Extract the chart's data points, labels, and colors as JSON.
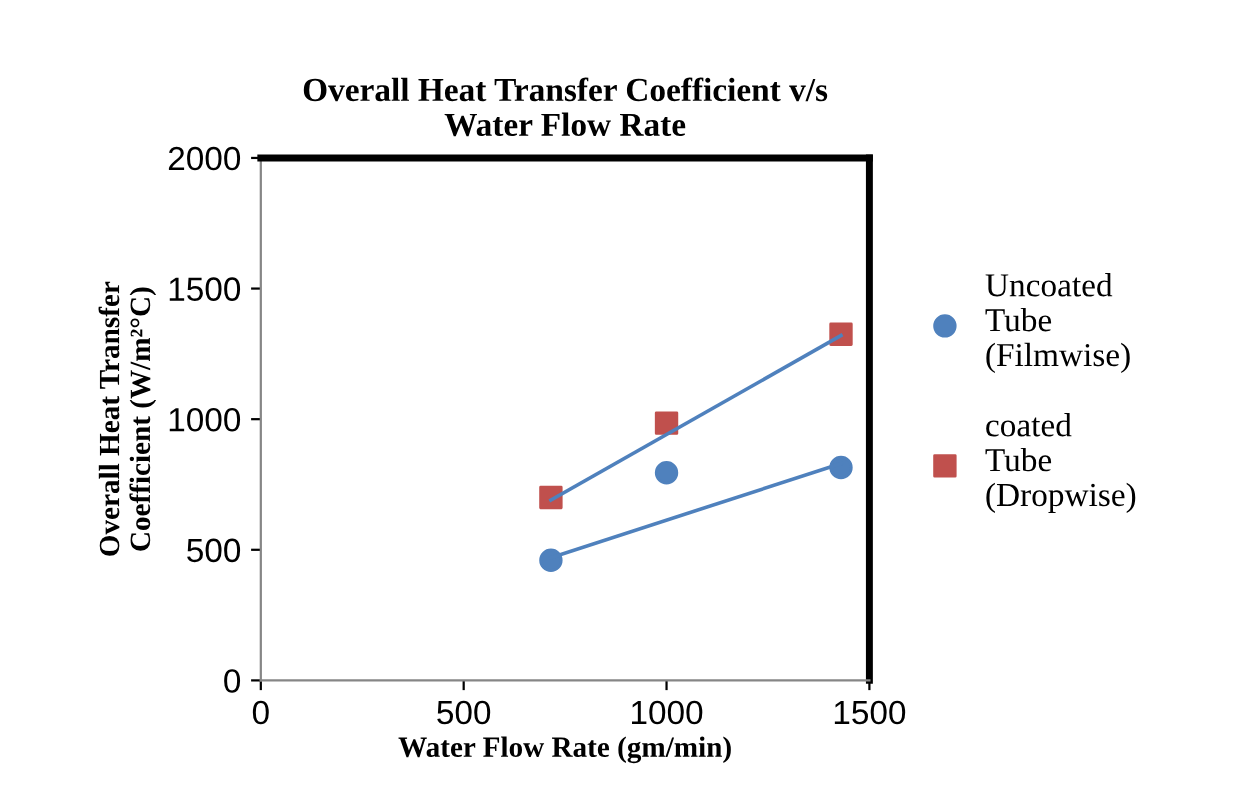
{
  "chart_data": {
    "type": "scatter",
    "title": "Overall Heat Transfer Coefficient v/s\nWater Flow Rate",
    "xlabel": "Water Flow Rate (gm/min)",
    "ylabel": "Overall Heat Transfer\nCoefficient (W/m²°C)",
    "series": [
      {
        "name": "Uncoated\nTube\n(Filmwise)",
        "color": "#4f81bd",
        "marker": "circle",
        "x": [
          715,
          1000,
          1430
        ],
        "values": [
          460,
          795,
          815
        ]
      },
      {
        "name": "coated\nTube\n(Dropwise)",
        "color": "#c0504d",
        "marker": "square",
        "x": [
          715,
          1000,
          1430
        ],
        "values": [
          700,
          985,
          1325
        ]
      },
      {
        "type": "line",
        "color": "#4f81bd",
        "x": [
          715,
          1430
        ],
        "values": [
          470,
          830
        ]
      },
      {
        "type": "line",
        "color": "#4f81bd",
        "x": [
          715,
          1430
        ],
        "values": [
          690,
          1320
        ]
      }
    ],
    "xlim": [
      0,
      1500
    ],
    "ylim": [
      0,
      2000
    ],
    "xticks": [
      0,
      500,
      1000,
      1500
    ],
    "yticks": [
      0,
      500,
      1000,
      1500,
      2000
    ],
    "grid": false,
    "legend": "right"
  }
}
